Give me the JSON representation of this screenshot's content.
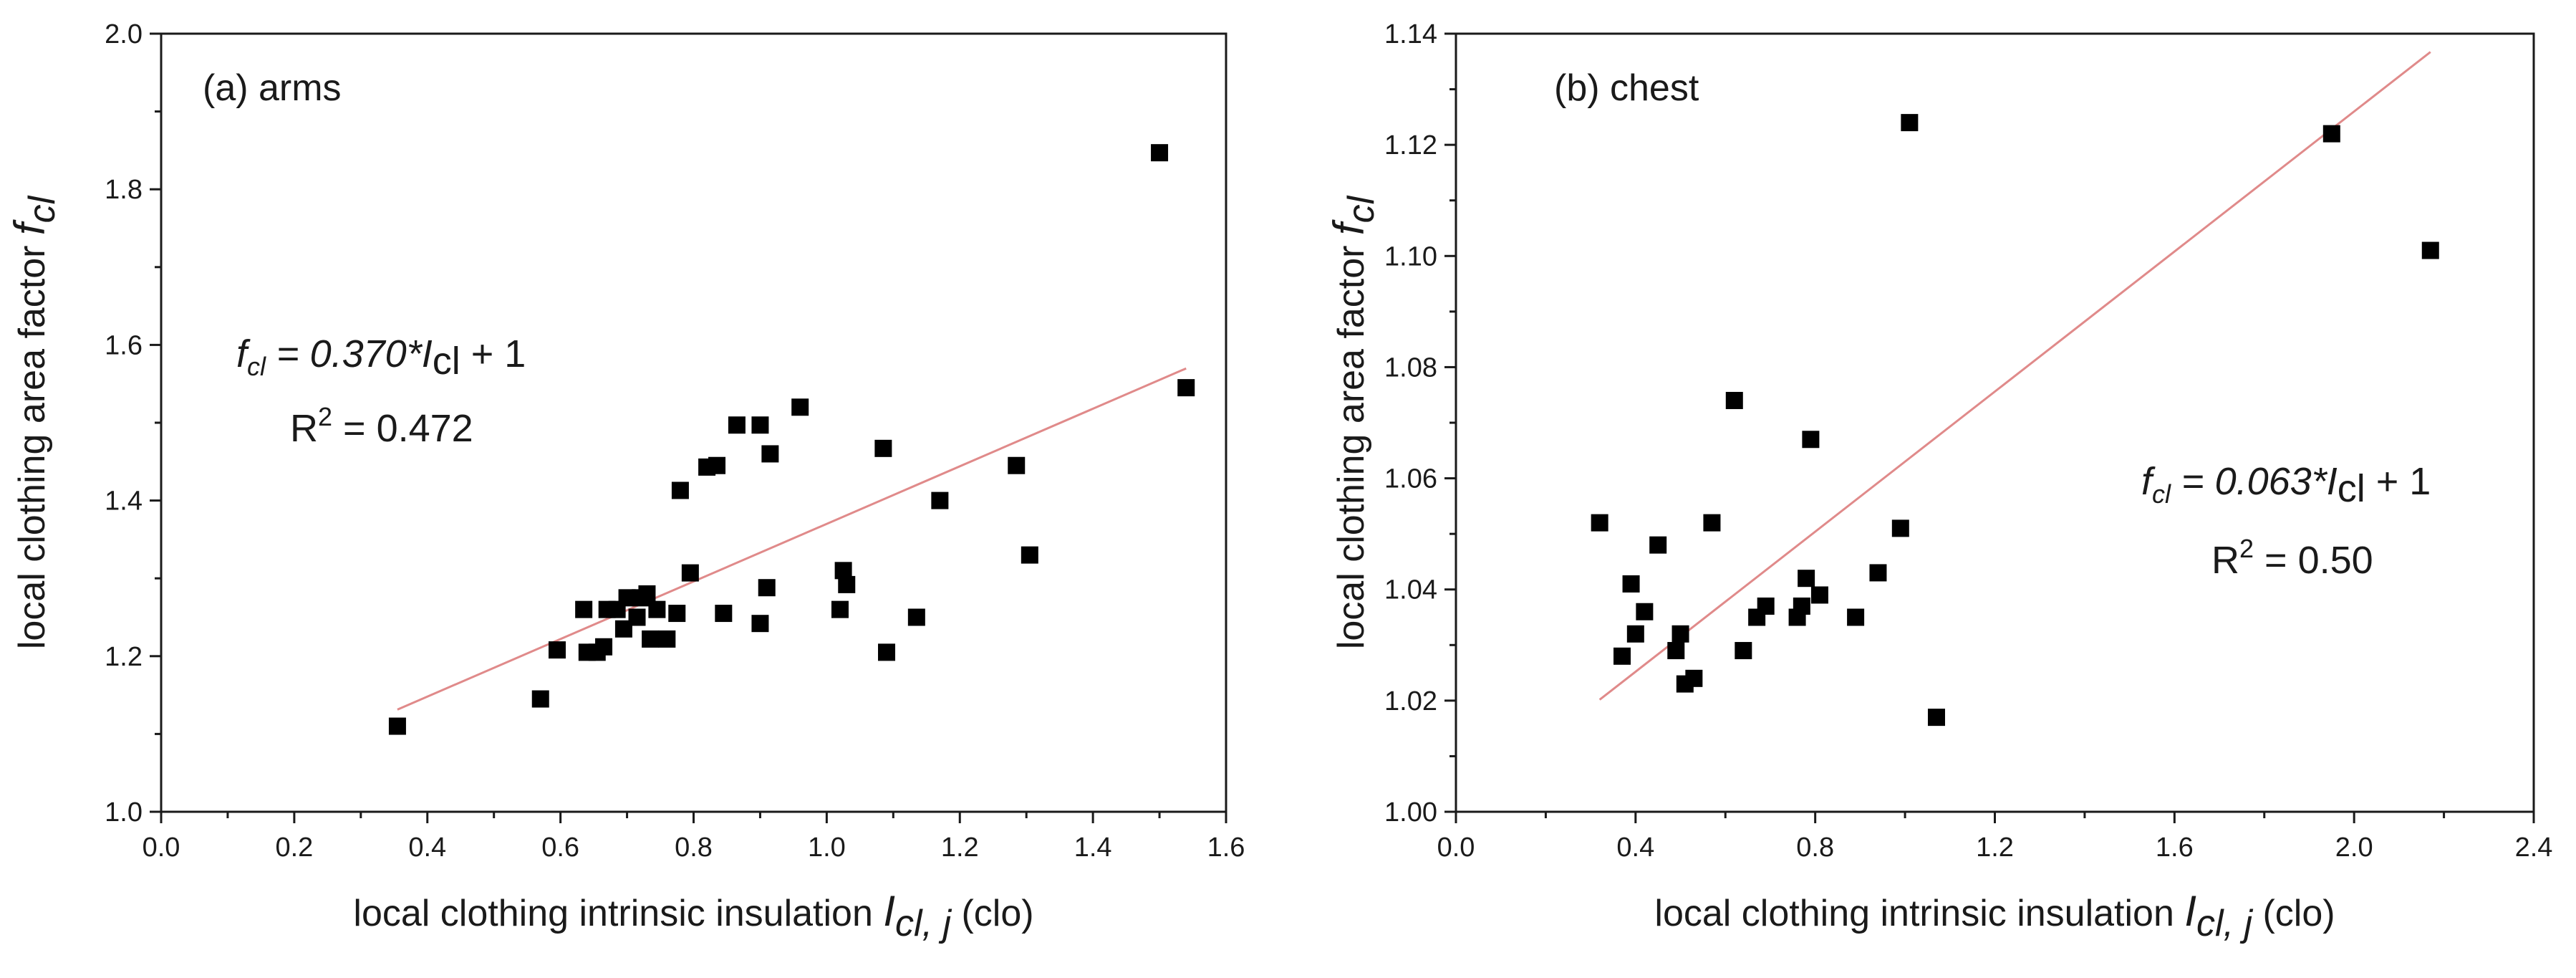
{
  "chart_data": [
    {
      "type": "scatter",
      "panel_label": "(a) arms",
      "xlabel": {
        "main": "local clothing intrinsic insulation ",
        "var": "I",
        "sub": "cl, j",
        "unit": " (clo)"
      },
      "ylabel": {
        "main": "local clothing area factor ",
        "var": "f",
        "sub": "cl"
      },
      "xlim": [
        0.0,
        1.6
      ],
      "ylim": [
        1.0,
        2.0
      ],
      "xticks": [
        "0.0",
        "0.2",
        "0.4",
        "0.6",
        "0.8",
        "1.0",
        "1.2",
        "1.4",
        "1.6"
      ],
      "yticks": [
        "1.0",
        "1.2",
        "1.4",
        "1.6",
        "1.8",
        "2.0"
      ],
      "points": [
        {
          "x": 0.355,
          "y": 1.11
        },
        {
          "x": 0.57,
          "y": 1.145
        },
        {
          "x": 0.595,
          "y": 1.208
        },
        {
          "x": 0.635,
          "y": 1.26
        },
        {
          "x": 0.64,
          "y": 1.205
        },
        {
          "x": 0.655,
          "y": 1.205
        },
        {
          "x": 0.665,
          "y": 1.212
        },
        {
          "x": 0.67,
          "y": 1.26
        },
        {
          "x": 0.685,
          "y": 1.26
        },
        {
          "x": 0.695,
          "y": 1.235
        },
        {
          "x": 0.7,
          "y": 1.275
        },
        {
          "x": 0.715,
          "y": 1.25
        },
        {
          "x": 0.72,
          "y": 1.275
        },
        {
          "x": 0.73,
          "y": 1.28
        },
        {
          "x": 0.735,
          "y": 1.222
        },
        {
          "x": 0.745,
          "y": 1.26
        },
        {
          "x": 0.76,
          "y": 1.222
        },
        {
          "x": 0.775,
          "y": 1.255
        },
        {
          "x": 0.78,
          "y": 1.413
        },
        {
          "x": 0.795,
          "y": 1.307
        },
        {
          "x": 0.82,
          "y": 1.443
        },
        {
          "x": 0.835,
          "y": 1.445
        },
        {
          "x": 0.845,
          "y": 1.255
        },
        {
          "x": 0.865,
          "y": 1.497
        },
        {
          "x": 0.9,
          "y": 1.497
        },
        {
          "x": 0.9,
          "y": 1.242
        },
        {
          "x": 0.91,
          "y": 1.288
        },
        {
          "x": 0.915,
          "y": 1.46
        },
        {
          "x": 0.96,
          "y": 1.52
        },
        {
          "x": 1.02,
          "y": 1.26
        },
        {
          "x": 1.025,
          "y": 1.31
        },
        {
          "x": 1.03,
          "y": 1.292
        },
        {
          "x": 1.085,
          "y": 1.467
        },
        {
          "x": 1.09,
          "y": 1.205
        },
        {
          "x": 1.135,
          "y": 1.25
        },
        {
          "x": 1.17,
          "y": 1.4
        },
        {
          "x": 1.285,
          "y": 1.445
        },
        {
          "x": 1.305,
          "y": 1.33
        },
        {
          "x": 1.5,
          "y": 1.847
        },
        {
          "x": 1.54,
          "y": 1.545
        }
      ],
      "fit": {
        "slope": 0.37,
        "intercept": 1.0,
        "x_range": [
          0.355,
          1.54
        ],
        "color": "#e08a8a"
      },
      "equation": {
        "lhs": "f",
        "lhs_sub": "cl",
        "mid": " = ",
        "coef": "0.370*",
        "var": "I",
        "var_sub": "cl",
        "rest": " + 1"
      },
      "r2": {
        "base": "R",
        "sup": "2",
        "rest": " = 0.472"
      }
    },
    {
      "type": "scatter",
      "panel_label": "(b) chest",
      "xlabel": {
        "main": "local clothing intrinsic insulation ",
        "var": "I",
        "sub": "cl, j",
        "unit": " (clo)"
      },
      "ylabel": {
        "main": "local clothing area factor ",
        "var": "f",
        "sub": "cl"
      },
      "xlim": [
        0.0,
        2.4
      ],
      "ylim": [
        1.0,
        1.14
      ],
      "xticks": [
        "0.0",
        "0.4",
        "0.8",
        "1.2",
        "1.6",
        "2.0",
        "2.4"
      ],
      "yticks": [
        "1.00",
        "1.02",
        "1.04",
        "1.06",
        "1.08",
        "1.10",
        "1.12",
        "1.14"
      ],
      "points": [
        {
          "x": 0.32,
          "y": 1.052
        },
        {
          "x": 0.37,
          "y": 1.028
        },
        {
          "x": 0.39,
          "y": 1.041
        },
        {
          "x": 0.4,
          "y": 1.032
        },
        {
          "x": 0.42,
          "y": 1.036
        },
        {
          "x": 0.45,
          "y": 1.048
        },
        {
          "x": 0.49,
          "y": 1.029
        },
        {
          "x": 0.5,
          "y": 1.032
        },
        {
          "x": 0.51,
          "y": 1.023
        },
        {
          "x": 0.53,
          "y": 1.024
        },
        {
          "x": 0.57,
          "y": 1.052
        },
        {
          "x": 0.62,
          "y": 1.074
        },
        {
          "x": 0.64,
          "y": 1.029
        },
        {
          "x": 0.67,
          "y": 1.035
        },
        {
          "x": 0.69,
          "y": 1.037
        },
        {
          "x": 0.76,
          "y": 1.035
        },
        {
          "x": 0.77,
          "y": 1.037
        },
        {
          "x": 0.78,
          "y": 1.042
        },
        {
          "x": 0.79,
          "y": 1.067
        },
        {
          "x": 0.81,
          "y": 1.039
        },
        {
          "x": 0.89,
          "y": 1.035
        },
        {
          "x": 0.94,
          "y": 1.043
        },
        {
          "x": 0.99,
          "y": 1.051
        },
        {
          "x": 1.01,
          "y": 1.124
        },
        {
          "x": 1.07,
          "y": 1.017
        },
        {
          "x": 1.95,
          "y": 1.122
        },
        {
          "x": 2.17,
          "y": 1.101
        }
      ],
      "fit": {
        "slope": 0.063,
        "intercept": 1.0,
        "x_range": [
          0.32,
          2.17
        ],
        "color": "#e08a8a"
      },
      "equation": {
        "lhs": "f",
        "lhs_sub": "cl",
        "mid": " = ",
        "coef": "0.063*",
        "var": "I",
        "var_sub": "cl",
        "rest": " + 1"
      },
      "r2": {
        "base": "R",
        "sup": "2",
        "rest": " = 0.50"
      }
    }
  ]
}
